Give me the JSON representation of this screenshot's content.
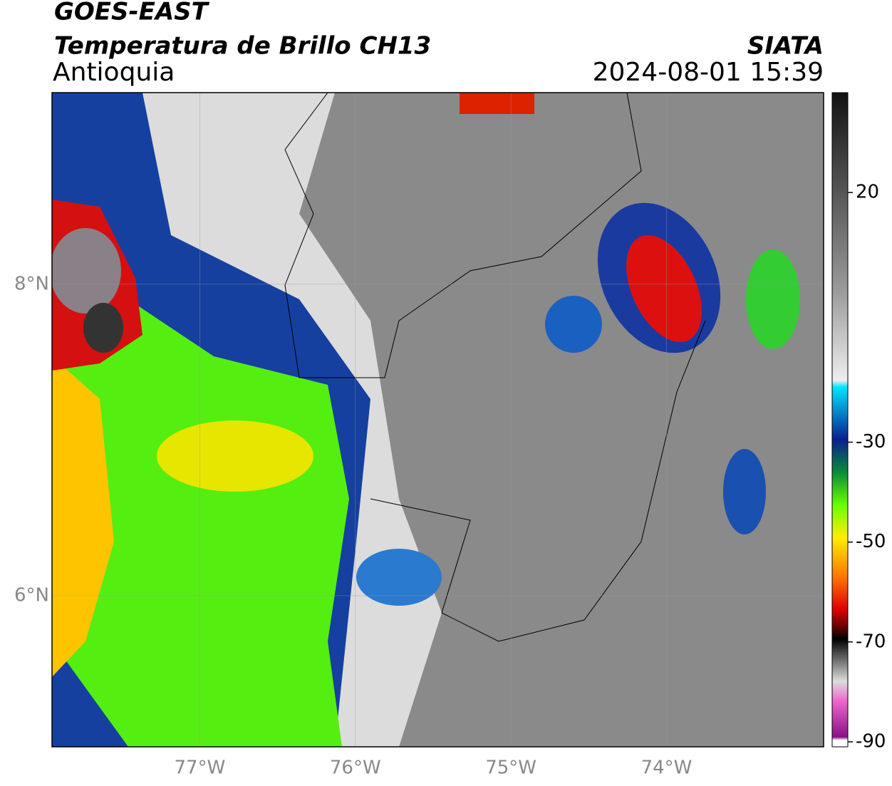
{
  "header": {
    "title": "GOES-EAST",
    "subtitle": "Temperatura de Brillo CH13",
    "region": "Antioquia",
    "source": "SIATA",
    "datetime": "2024-08-01 15:39"
  },
  "map": {
    "xlim": [
      -77.95,
      -72.99
    ],
    "ylim": [
      5.03,
      9.23
    ],
    "xticks": [
      {
        "value": -77,
        "label": "77°W"
      },
      {
        "value": -76,
        "label": "76°W"
      },
      {
        "value": -75,
        "label": "75°W"
      },
      {
        "value": -74,
        "label": "74°W"
      }
    ],
    "yticks": [
      {
        "value": 8,
        "label": "8°N"
      },
      {
        "value": 6,
        "label": "6°N"
      }
    ],
    "grid": true
  },
  "colorbar": {
    "lim": [
      -91,
      40
    ],
    "ticks": [
      20,
      -30,
      -50,
      -70,
      -90
    ]
  }
}
